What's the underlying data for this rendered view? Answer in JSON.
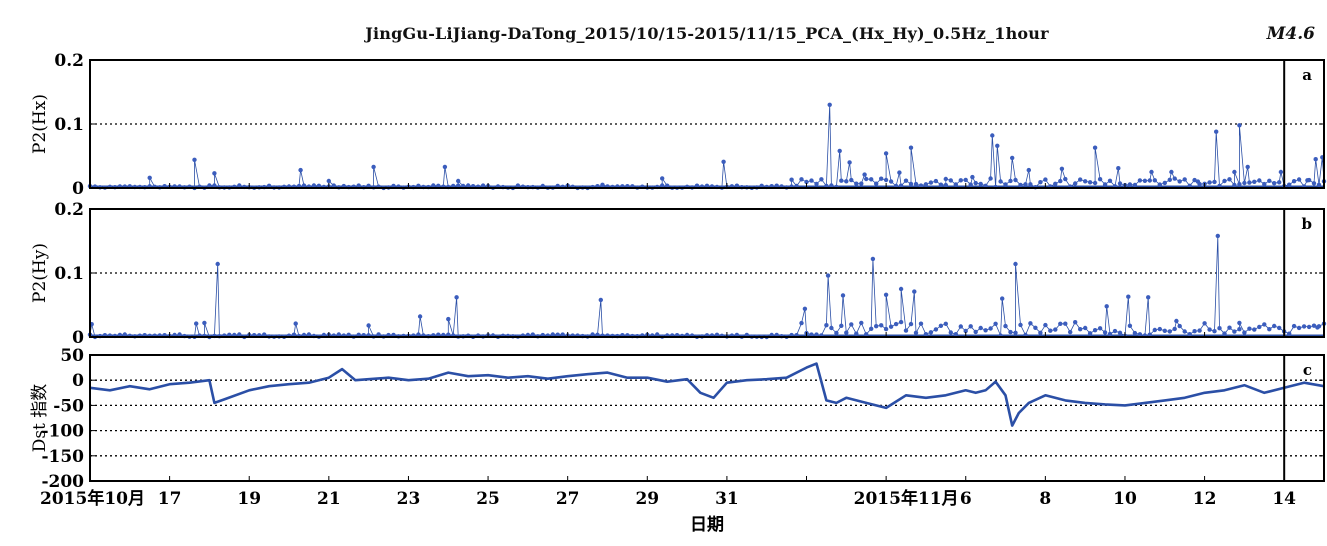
{
  "figure": {
    "title": "JingGu-LiJiang-DaTong_2015/10/15-2015/11/15_PCA_(Hx_Hy)_0.5Hz_1hour",
    "magnitude_label": "M4.6",
    "xlabel": "日期",
    "colors": {
      "series": "#2b4fa6",
      "marker": "#3b5dbd",
      "grid": "#000000",
      "event": "#000000"
    }
  },
  "chart_data": [
    {
      "type": "line",
      "panel_letter": "a",
      "ylabel": "P2(Hx)",
      "ylim": [
        0,
        0.2
      ],
      "yticks": [
        "0",
        "0.1",
        "0.2"
      ],
      "gridlines": [
        0.1
      ],
      "markers": true,
      "x_start": "2015-10-15",
      "x_end": "2015-11-15",
      "event_x": "2015-11-14",
      "spikes": [
        {
          "x": "2015-10-16 12:00",
          "y": 0.016
        },
        {
          "x": "2015-10-17 15:00",
          "y": 0.044
        },
        {
          "x": "2015-10-18 03:00",
          "y": 0.023
        },
        {
          "x": "2015-10-20 07:00",
          "y": 0.028
        },
        {
          "x": "2015-10-21 00:00",
          "y": 0.011
        },
        {
          "x": "2015-10-22 03:00",
          "y": 0.033
        },
        {
          "x": "2015-10-23 22:00",
          "y": 0.033
        },
        {
          "x": "2015-10-24 06:00",
          "y": 0.011
        },
        {
          "x": "2015-10-27 21:00",
          "y": 0.005
        },
        {
          "x": "2015-10-29 09:00",
          "y": 0.015
        },
        {
          "x": "2015-10-30 22:00",
          "y": 0.041
        },
        {
          "x": "2015-11-01 15:00",
          "y": 0.013
        },
        {
          "x": "2015-11-02 14:00",
          "y": 0.13
        },
        {
          "x": "2015-11-02 20:00",
          "y": 0.058
        },
        {
          "x": "2015-11-03 02:00",
          "y": 0.04
        },
        {
          "x": "2015-11-03 11:00",
          "y": 0.021
        },
        {
          "x": "2015-11-04 00:00",
          "y": 0.054
        },
        {
          "x": "2015-11-04 08:00",
          "y": 0.024
        },
        {
          "x": "2015-11-04 15:00",
          "y": 0.063
        },
        {
          "x": "2015-11-05 12:00",
          "y": 0.014
        },
        {
          "x": "2015-11-06 04:00",
          "y": 0.017
        },
        {
          "x": "2015-11-06 16:00",
          "y": 0.082
        },
        {
          "x": "2015-11-06 19:00",
          "y": 0.066
        },
        {
          "x": "2015-11-07 04:00",
          "y": 0.047
        },
        {
          "x": "2015-11-07 14:00",
          "y": 0.028
        },
        {
          "x": "2015-11-08 10:00",
          "y": 0.03
        },
        {
          "x": "2015-11-09 06:00",
          "y": 0.063
        },
        {
          "x": "2015-11-09 20:00",
          "y": 0.031
        },
        {
          "x": "2015-11-10 16:00",
          "y": 0.025
        },
        {
          "x": "2015-11-11 04:00",
          "y": 0.025
        },
        {
          "x": "2015-11-11 20:00",
          "y": 0.01
        },
        {
          "x": "2015-11-12 07:00",
          "y": 0.088
        },
        {
          "x": "2015-11-12 18:00",
          "y": 0.025
        },
        {
          "x": "2015-11-12 21:00",
          "y": 0.098
        },
        {
          "x": "2015-11-13 02:00",
          "y": 0.033
        },
        {
          "x": "2015-11-13 22:00",
          "y": 0.025
        },
        {
          "x": "2015-11-14 14:00",
          "y": 0.012
        },
        {
          "x": "2015-11-14 19:00",
          "y": 0.045
        },
        {
          "x": "2015-11-14 23:00",
          "y": 0.048
        }
      ]
    },
    {
      "type": "line",
      "panel_letter": "b",
      "ylabel": "P2(Hy)",
      "ylim": [
        0,
        0.2
      ],
      "yticks": [
        "0",
        "0.1",
        "0.2"
      ],
      "gridlines": [
        0.1
      ],
      "markers": true,
      "x_start": "2015-10-15",
      "x_end": "2015-11-15",
      "event_x": "2015-11-14",
      "spikes": [
        {
          "x": "2015-10-15 01:00",
          "y": 0.02
        },
        {
          "x": "2015-10-17 16:00",
          "y": 0.021
        },
        {
          "x": "2015-10-17 21:00",
          "y": 0.022
        },
        {
          "x": "2015-10-18 05:00",
          "y": 0.114
        },
        {
          "x": "2015-10-20 04:00",
          "y": 0.021
        },
        {
          "x": "2015-10-22 00:00",
          "y": 0.018
        },
        {
          "x": "2015-10-23 07:00",
          "y": 0.032
        },
        {
          "x": "2015-10-24 00:00",
          "y": 0.028
        },
        {
          "x": "2015-10-24 05:00",
          "y": 0.062
        },
        {
          "x": "2015-10-27 20:00",
          "y": 0.058
        },
        {
          "x": "2015-11-01 23:00",
          "y": 0.044
        },
        {
          "x": "2015-11-02 13:00",
          "y": 0.096
        },
        {
          "x": "2015-11-02 22:00",
          "y": 0.065
        },
        {
          "x": "2015-11-03 16:00",
          "y": 0.122
        },
        {
          "x": "2015-11-04 00:00",
          "y": 0.066
        },
        {
          "x": "2015-11-04 09:00",
          "y": 0.075
        },
        {
          "x": "2015-11-04 17:00",
          "y": 0.071
        },
        {
          "x": "2015-11-06 22:00",
          "y": 0.06
        },
        {
          "x": "2015-11-07 06:00",
          "y": 0.114
        },
        {
          "x": "2015-11-09 13:00",
          "y": 0.048
        },
        {
          "x": "2015-11-10 02:00",
          "y": 0.063
        },
        {
          "x": "2015-11-10 14:00",
          "y": 0.062
        },
        {
          "x": "2015-11-11 07:00",
          "y": 0.025
        },
        {
          "x": "2015-11-12 08:00",
          "y": 0.158
        },
        {
          "x": "2015-11-12 21:00",
          "y": 0.022
        },
        {
          "x": "2015-11-14 20:00",
          "y": 0.015
        }
      ]
    },
    {
      "type": "line",
      "panel_letter": "c",
      "ylabel": "Dst 指数",
      "ylim": [
        -200,
        50
      ],
      "yticks": [
        "50",
        "0",
        "-50",
        "-100",
        "-150",
        "-200"
      ],
      "gridlines": [
        0,
        -50,
        -100,
        -150
      ],
      "markers": false,
      "x_start": "2015-10-15",
      "x_end": "2015-11-15",
      "event_x": "2015-11-14",
      "x": [
        "2015-10-15",
        "2015-10-15 12:00",
        "2015-10-16",
        "2015-10-16 12:00",
        "2015-10-17",
        "2015-10-17 12:00",
        "2015-10-18",
        "2015-10-18 03:00",
        "2015-10-18 09:00",
        "2015-10-19",
        "2015-10-19 12:00",
        "2015-10-20",
        "2015-10-20 12:00",
        "2015-10-21",
        "2015-10-21 08:00",
        "2015-10-21 16:00",
        "2015-10-22",
        "2015-10-22 12:00",
        "2015-10-23",
        "2015-10-23 12:00",
        "2015-10-24",
        "2015-10-24 12:00",
        "2015-10-25",
        "2015-10-25 12:00",
        "2015-10-26",
        "2015-10-26 12:00",
        "2015-10-27",
        "2015-10-27 12:00",
        "2015-10-28",
        "2015-10-28 12:00",
        "2015-10-29",
        "2015-10-29 12:00",
        "2015-10-30",
        "2015-10-30 08:00",
        "2015-10-30 16:00",
        "2015-10-31",
        "2015-10-31 12:00",
        "2015-11-01",
        "2015-11-01 12:00",
        "2015-11-02",
        "2015-11-02 06:00",
        "2015-11-02 12:00",
        "2015-11-02 18:00",
        "2015-11-03",
        "2015-11-03 12:00",
        "2015-11-04",
        "2015-11-04 12:00",
        "2015-11-05",
        "2015-11-05 12:00",
        "2015-11-06",
        "2015-11-06 06:00",
        "2015-11-06 12:00",
        "2015-11-06 18:00",
        "2015-11-07",
        "2015-11-07 04:00",
        "2015-11-07 08:00",
        "2015-11-07 14:00",
        "2015-11-08",
        "2015-11-08 12:00",
        "2015-11-09",
        "2015-11-09 12:00",
        "2015-11-10",
        "2015-11-10 12:00",
        "2015-11-11",
        "2015-11-11 12:00",
        "2015-11-12",
        "2015-11-12 12:00",
        "2015-11-13",
        "2015-11-13 12:00",
        "2015-11-14",
        "2015-11-14 12:00",
        "2015-11-15"
      ],
      "y": [
        -15,
        -20,
        -12,
        -18,
        -8,
        -5,
        0,
        -45,
        -38,
        -20,
        -12,
        -8,
        -5,
        5,
        22,
        0,
        2,
        5,
        0,
        3,
        15,
        8,
        10,
        5,
        8,
        3,
        8,
        12,
        15,
        5,
        5,
        -3,
        2,
        -25,
        -35,
        -5,
        0,
        2,
        5,
        25,
        33,
        -40,
        -45,
        -35,
        -45,
        -55,
        -30,
        -35,
        -30,
        -20,
        -25,
        -20,
        -3,
        -30,
        -90,
        -65,
        -45,
        -30,
        -40,
        -45,
        -48,
        -50,
        -45,
        -40,
        -35,
        -25,
        -20,
        -10,
        -25,
        -15,
        -5,
        -12
      ]
    }
  ],
  "xaxis": {
    "tick_dates": [
      "2015-10-15",
      "2015-10-17",
      "2015-10-19",
      "2015-10-21",
      "2015-10-23",
      "2015-10-25",
      "2015-10-27",
      "2015-10-29",
      "2015-10-31",
      "2015-11-02",
      "2015-11-04",
      "2015-11-06",
      "2015-11-08",
      "2015-11-10",
      "2015-11-12",
      "2015-11-14"
    ],
    "tick_labels": [
      "2015年10月",
      "17",
      "19",
      "21",
      "23",
      "25",
      "27",
      "29",
      "31",
      "",
      "2015年11月",
      "6",
      "8",
      "10",
      "12",
      "14"
    ]
  }
}
